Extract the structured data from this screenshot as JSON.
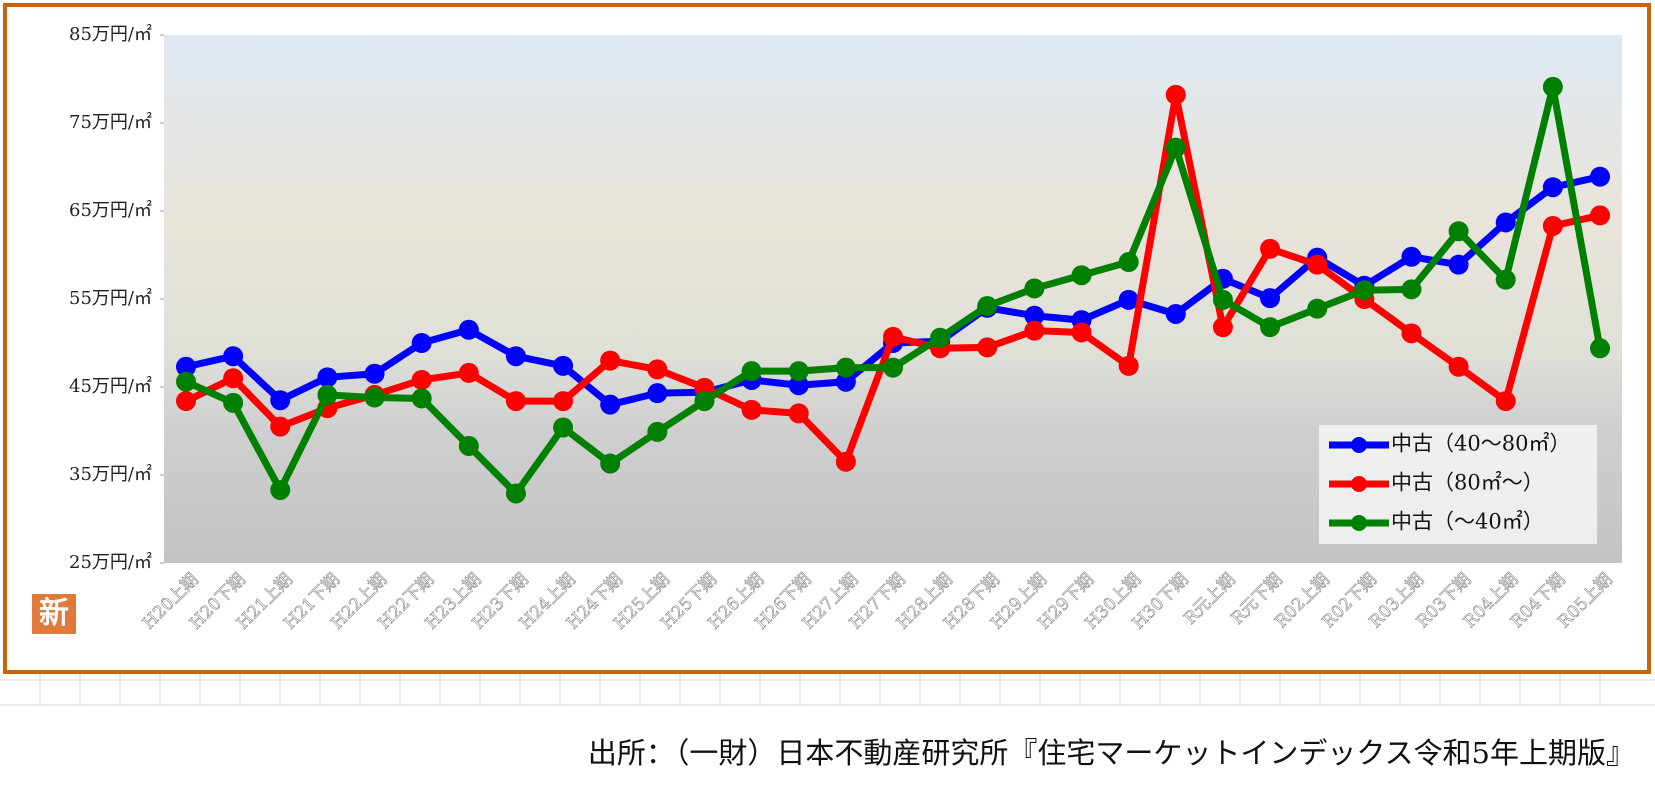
{
  "chart_data": {
    "type": "line",
    "categories": [
      "H20上期",
      "H20下期",
      "H21上期",
      "H21下期",
      "H22上期",
      "H22下期",
      "H23上期",
      "H23下期",
      "H24上期",
      "H24下期",
      "H25上期",
      "H25下期",
      "H26上期",
      "H26下期",
      "H27上期",
      "H27下期",
      "H28上期",
      "H28下期",
      "H29上期",
      "H29下期",
      "H30上期",
      "H30下期",
      "R元上期",
      "R元下期",
      "R02上期",
      "R02下期",
      "R03上期",
      "R03下期",
      "R04上期",
      "R04下期",
      "R05上期"
    ],
    "series": [
      {
        "name": "中古（40～80㎡）",
        "color": "#0000ff",
        "values": [
          47.3,
          48.5,
          43.5,
          46.1,
          46.5,
          50,
          51.5,
          48.5,
          47.4,
          43,
          44.3,
          44.4,
          45.8,
          45.2,
          45.6,
          50,
          50.2,
          54,
          53.1,
          52.6,
          54.9,
          53.3,
          57.3,
          55.1,
          59.7,
          56.5,
          59.8,
          58.9,
          63.7,
          67.7,
          68.9
        ]
      },
      {
        "name": "中古（80㎡～）",
        "color": "#ff0000",
        "values": [
          43.4,
          46,
          40.5,
          42.6,
          44.1,
          45.8,
          46.6,
          43.4,
          43.4,
          48,
          47,
          44.9,
          42.4,
          42,
          36.5,
          50.7,
          49.4,
          49.5,
          51.4,
          51.2,
          47.4,
          78.2,
          51.8,
          60.7,
          58.9,
          55,
          51.1,
          47.3,
          43.4,
          63.3,
          64.5
        ]
      },
      {
        "name": "中古（～40㎡）",
        "color": "#008000",
        "values": [
          45.6,
          43.2,
          33.3,
          44.1,
          43.8,
          43.7,
          38.3,
          32.9,
          40.4,
          36.3,
          39.9,
          43.4,
          46.8,
          46.8,
          47.2,
          47.2,
          50.6,
          54.2,
          56.2,
          57.7,
          59.2,
          72.2,
          54.9,
          51.8,
          53.9,
          56,
          56.1,
          62.7,
          57.2,
          79.1,
          49.4
        ]
      }
    ],
    "ylim": [
      25,
      85
    ],
    "yticks": [
      {
        "value": 25,
        "label": "25万円/㎡"
      },
      {
        "value": 35,
        "label": "35万円/㎡"
      },
      {
        "value": 45,
        "label": "45万円/㎡"
      },
      {
        "value": 55,
        "label": "55万円/㎡"
      },
      {
        "value": 65,
        "label": "65万円/㎡"
      },
      {
        "value": 75,
        "label": "75万円/㎡"
      },
      {
        "value": 85,
        "label": "85万円/㎡"
      }
    ],
    "legend": "lower right",
    "badge": "新",
    "source": "出所：（一財）日本不動産研究所『住宅マーケットインデックス令和5年上期版』"
  }
}
